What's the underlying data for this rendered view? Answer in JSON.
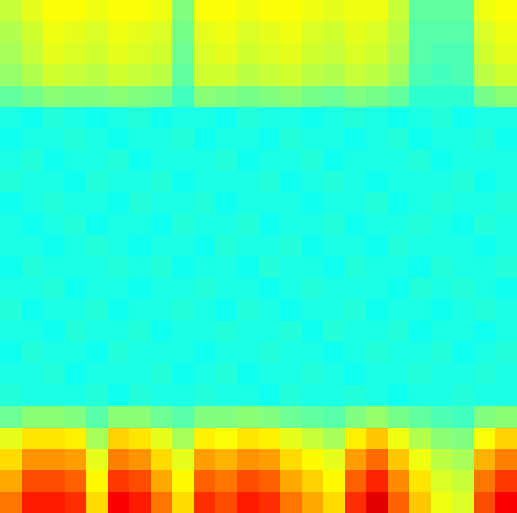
{
  "chart_data": {
    "type": "heatmap",
    "tick_labels": false,
    "zlim": [
      0,
      100
    ],
    "cells": [
      [
        57,
        60,
        62,
        62,
        61,
        62,
        62,
        61,
        50,
        62,
        62,
        61,
        62,
        62,
        61,
        60,
        61,
        61,
        57,
        47,
        47,
        47,
        61,
        62
      ],
      [
        55,
        58,
        61,
        60,
        59,
        61,
        60,
        59,
        49,
        60,
        61,
        59,
        60,
        61,
        59,
        58,
        60,
        59,
        56,
        46,
        46,
        46,
        59,
        61
      ],
      [
        54,
        57,
        60,
        59,
        58,
        60,
        59,
        58,
        48,
        59,
        60,
        58,
        59,
        60,
        58,
        57,
        59,
        58,
        55,
        46,
        45,
        45,
        58,
        60
      ],
      [
        52,
        55,
        58,
        57,
        56,
        58,
        57,
        56,
        47,
        58,
        58,
        56,
        57,
        58,
        56,
        55,
        57,
        56,
        53,
        45,
        44,
        45,
        56,
        58
      ],
      [
        47,
        49,
        51,
        50,
        50,
        51,
        50,
        49,
        44,
        51,
        50,
        49,
        50,
        51,
        49,
        48,
        50,
        49,
        47,
        42,
        42,
        42,
        49,
        51
      ],
      [
        40,
        39,
        41,
        40,
        39,
        40,
        41,
        39,
        40,
        40,
        39,
        41,
        40,
        40,
        39,
        40,
        41,
        40,
        39,
        40,
        41,
        39,
        40,
        40
      ],
      [
        39,
        40,
        40,
        41,
        40,
        39,
        40,
        40,
        41,
        39,
        40,
        40,
        39,
        41,
        40,
        40,
        39,
        40,
        41,
        39,
        40,
        40,
        41,
        39
      ],
      [
        40,
        41,
        39,
        40,
        40,
        41,
        39,
        40,
        40,
        40,
        41,
        39,
        40,
        40,
        41,
        39,
        40,
        40,
        40,
        41,
        39,
        40,
        40,
        40
      ],
      [
        41,
        40,
        40,
        39,
        41,
        40,
        40,
        41,
        39,
        40,
        40,
        40,
        41,
        39,
        40,
        41,
        40,
        39,
        40,
        40,
        40,
        41,
        39,
        40
      ],
      [
        39,
        40,
        41,
        40,
        40,
        39,
        41,
        40,
        40,
        41,
        39,
        40,
        40,
        40,
        39,
        40,
        40,
        41,
        39,
        40,
        41,
        40,
        40,
        41
      ],
      [
        40,
        39,
        40,
        41,
        39,
        40,
        40,
        39,
        41,
        40,
        40,
        41,
        39,
        40,
        40,
        41,
        39,
        40,
        40,
        41,
        40,
        39,
        41,
        40
      ],
      [
        40,
        40,
        39,
        40,
        41,
        40,
        39,
        40,
        40,
        39,
        41,
        40,
        40,
        41,
        39,
        40,
        40,
        39,
        41,
        40,
        40,
        40,
        39,
        40
      ],
      [
        39,
        41,
        40,
        40,
        40,
        41,
        40,
        41,
        39,
        40,
        40,
        39,
        41,
        40,
        40,
        39,
        41,
        40,
        40,
        39,
        41,
        40,
        40,
        41
      ],
      [
        40,
        40,
        41,
        39,
        40,
        40,
        39,
        40,
        40,
        41,
        40,
        40,
        39,
        40,
        41,
        40,
        40,
        40,
        39,
        41,
        40,
        41,
        40,
        39
      ],
      [
        41,
        39,
        40,
        40,
        41,
        39,
        40,
        40,
        41,
        40,
        39,
        41,
        40,
        39,
        40,
        40,
        41,
        39,
        40,
        40,
        39,
        40,
        41,
        40
      ],
      [
        40,
        40,
        39,
        41,
        40,
        40,
        41,
        39,
        40,
        40,
        41,
        40,
        40,
        41,
        39,
        41,
        40,
        40,
        41,
        39,
        40,
        40,
        39,
        40
      ],
      [
        39,
        41,
        40,
        40,
        39,
        41,
        40,
        40,
        40,
        39,
        40,
        40,
        41,
        40,
        40,
        39,
        40,
        41,
        40,
        40,
        41,
        39,
        40,
        41
      ],
      [
        40,
        40,
        41,
        39,
        40,
        40,
        40,
        41,
        39,
        40,
        41,
        39,
        40,
        40,
        41,
        40,
        39,
        40,
        40,
        41,
        40,
        40,
        41,
        40
      ],
      [
        41,
        40,
        40,
        40,
        41,
        39,
        41,
        40,
        40,
        41,
        40,
        40,
        39,
        41,
        40,
        40,
        41,
        40,
        39,
        40,
        40,
        41,
        40,
        40
      ],
      [
        48,
        51,
        51,
        50,
        46,
        51,
        51,
        48,
        46,
        50,
        50,
        51,
        50,
        48,
        47,
        46,
        50,
        52,
        49,
        47,
        45,
        44,
        50,
        51
      ],
      [
        60,
        65,
        65,
        64,
        54,
        67,
        65,
        60,
        54,
        64,
        62,
        65,
        64,
        60,
        57,
        54,
        64,
        68,
        61,
        55,
        51,
        50,
        62,
        67
      ],
      [
        66,
        73,
        73,
        72,
        60,
        75,
        73,
        66,
        60,
        72,
        70,
        73,
        72,
        66,
        63,
        60,
        72,
        77,
        68,
        61,
        56,
        54,
        70,
        75
      ],
      [
        71,
        80,
        80,
        78,
        63,
        82,
        80,
        71,
        63,
        78,
        76,
        80,
        78,
        71,
        67,
        63,
        78,
        84,
        74,
        65,
        59,
        57,
        76,
        82
      ],
      [
        76,
        85,
        85,
        83,
        66,
        88,
        85,
        76,
        66,
        83,
        80,
        85,
        83,
        76,
        71,
        66,
        83,
        90,
        78,
        68,
        61,
        59,
        80,
        88
      ]
    ]
  }
}
